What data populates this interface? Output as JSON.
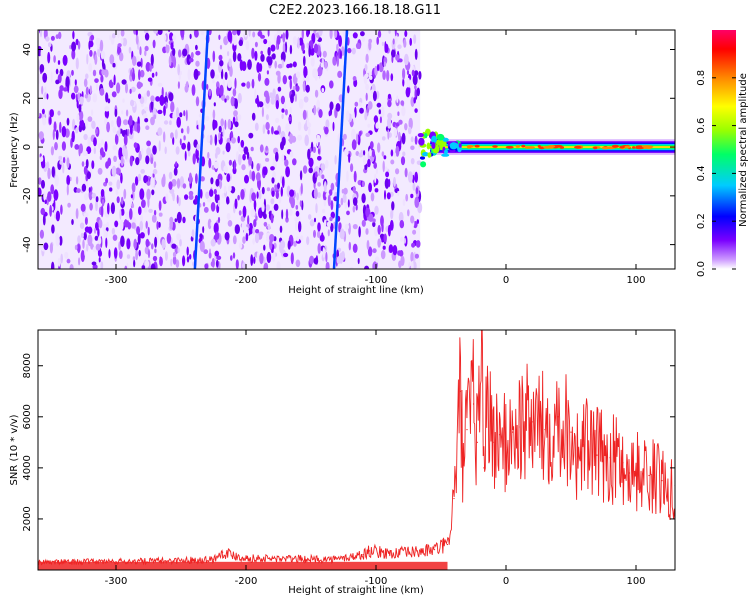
{
  "figure": {
    "title": "C2E2.2023.166.18.18.G11"
  },
  "chart_data": [
    {
      "type": "heatmap",
      "title": "",
      "xlabel": "Height of straight line (km)",
      "ylabel": "Frequency (Hz)",
      "xlim": [
        -360,
        130
      ],
      "ylim": [
        -50,
        48
      ],
      "xticks": [
        -300,
        -200,
        -100,
        0,
        100
      ],
      "yticks": [
        -40,
        -20,
        0,
        20,
        40
      ],
      "noise_region_x": [
        -360,
        -66
      ],
      "signal_region_x": [
        -66,
        130
      ],
      "signal_center_freq": 0,
      "artifact_lines_x": [
        -237,
        -130
      ],
      "colorbar": {
        "label": "Normalized spectral amplitude",
        "range": [
          0.0,
          1.0
        ],
        "ticks": [
          0.0,
          0.2,
          0.4,
          0.6,
          0.8
        ],
        "colormap": [
          "#ffffff",
          "#cc99ff",
          "#7a00ff",
          "#0000ff",
          "#00ccff",
          "#00ff66",
          "#99ff00",
          "#ffff00",
          "#ff8800",
          "#ff0000",
          "#ff0066"
        ]
      }
    },
    {
      "type": "line",
      "title": "",
      "xlabel": "Height of straight line (km)",
      "ylabel": "SNR (10 * v/v)",
      "xlim": [
        -360,
        130
      ],
      "ylim": [
        0,
        9400
      ],
      "xticks": [
        -300,
        -200,
        -100,
        0,
        100
      ],
      "yticks": [
        2000,
        4000,
        6000,
        8000
      ],
      "series": [
        {
          "color": "#ee2222",
          "x": [
            -360,
            -330,
            -300,
            -260,
            -225,
            -218,
            -200,
            -160,
            -130,
            -110,
            -105,
            -90,
            -70,
            -55,
            -45,
            -40,
            -35,
            -33,
            -30,
            -25,
            -22,
            -19,
            -17,
            -15,
            -10,
            -5,
            0,
            5,
            10,
            20,
            30,
            40,
            50,
            55,
            60,
            70,
            80,
            90,
            95,
            100,
            110,
            120,
            130
          ],
          "y": [
            300,
            320,
            330,
            360,
            420,
            700,
            460,
            430,
            420,
            600,
            750,
            650,
            700,
            800,
            1000,
            2800,
            7000,
            4000,
            5500,
            6500,
            5000,
            9400,
            4000,
            6800,
            5000,
            5300,
            4800,
            5400,
            5600,
            5800,
            5500,
            6000,
            5400,
            4500,
            4900,
            4500,
            4400,
            4200,
            3800,
            3900,
            3700,
            3500,
            3300
          ]
        }
      ]
    }
  ]
}
